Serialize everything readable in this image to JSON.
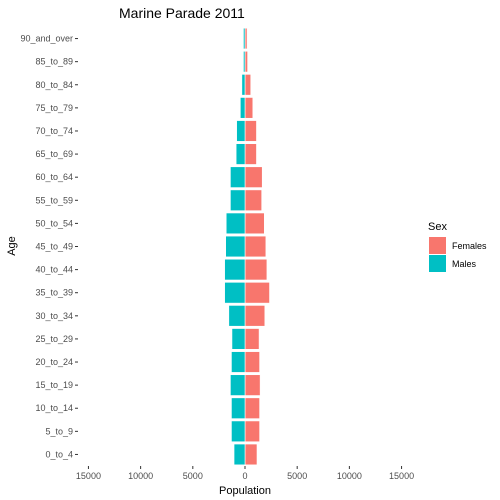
{
  "chart_data": {
    "type": "bar",
    "orientation": "horizontal",
    "title": "Marine Parade  2011",
    "xlabel": "Population",
    "ylabel": "Age",
    "xlim": [
      -16000,
      16000
    ],
    "x_ticks": [
      -15000,
      -10000,
      -5000,
      0,
      5000,
      10000,
      15000
    ],
    "x_tick_labels": [
      "15000",
      "10000",
      "5000",
      "0",
      "5000",
      "10000",
      "15000"
    ],
    "categories": [
      "0_to_4",
      "5_to_9",
      "10_to_14",
      "15_to_19",
      "20_to_24",
      "25_to_29",
      "30_to_34",
      "35_to_39",
      "40_to_44",
      "45_to_49",
      "50_to_54",
      "55_to_59",
      "60_to_64",
      "65_to_69",
      "70_to_74",
      "75_to_79",
      "80_to_84",
      "85_to_89",
      "90_and_over"
    ],
    "series": [
      {
        "name": "Females",
        "color": "#F8766D",
        "values": [
          1150,
          1400,
          1400,
          1450,
          1400,
          1350,
          1900,
          2350,
          2100,
          2000,
          1850,
          1600,
          1650,
          1100,
          1100,
          750,
          550,
          250,
          200
        ]
      },
      {
        "name": "Males",
        "color": "#00BFC4",
        "values": [
          -1050,
          -1300,
          -1300,
          -1400,
          -1300,
          -1250,
          -1550,
          -1950,
          -1950,
          -1850,
          -1800,
          -1400,
          -1400,
          -850,
          -800,
          -450,
          -300,
          -150,
          -150
        ]
      }
    ],
    "legend": {
      "title": "Sex",
      "position": "right",
      "entries": [
        "Females",
        "Males"
      ]
    },
    "grid": false
  }
}
